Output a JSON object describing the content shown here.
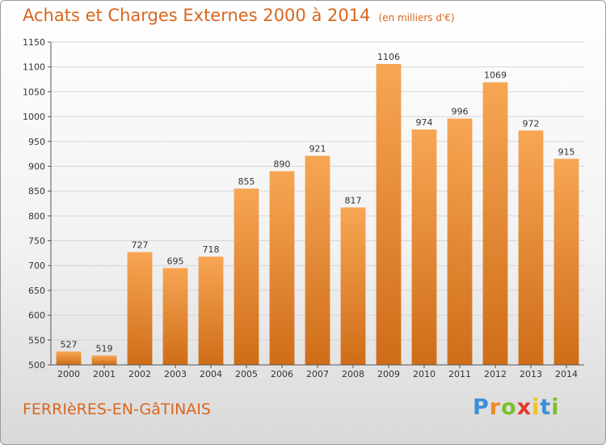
{
  "title": "Achats et Charges Externes 2000 à 2014",
  "subtitle": "(en milliers d'€)",
  "commune": "FERRIèRES-EN-GâTINAIS",
  "logo": {
    "letters": [
      "P",
      "r",
      "o",
      "x",
      "i",
      "t",
      "i"
    ],
    "colors": [
      "#3a8fd6",
      "#f08a1e",
      "#7cbf2a",
      "#e23a2a",
      "#f0c21e",
      "#3a8fd6",
      "#7cbf2a"
    ]
  },
  "colors": {
    "bar_top": "#f7a654",
    "bar_bottom": "#cf6d18",
    "accent": "#d9661e"
  },
  "chart_data": {
    "type": "bar",
    "categories": [
      "2000",
      "2001",
      "2002",
      "2003",
      "2004",
      "2005",
      "2006",
      "2007",
      "2008",
      "2009",
      "2010",
      "2011",
      "2012",
      "2013",
      "2014"
    ],
    "values": [
      527,
      519,
      727,
      695,
      718,
      855,
      890,
      921,
      817,
      1106,
      974,
      996,
      1069,
      972,
      915
    ],
    "ylim": [
      500,
      1150
    ],
    "yticks": [
      500,
      550,
      600,
      650,
      700,
      750,
      800,
      850,
      900,
      950,
      1000,
      1050,
      1100,
      1150
    ],
    "grid": true,
    "legend": "none"
  }
}
